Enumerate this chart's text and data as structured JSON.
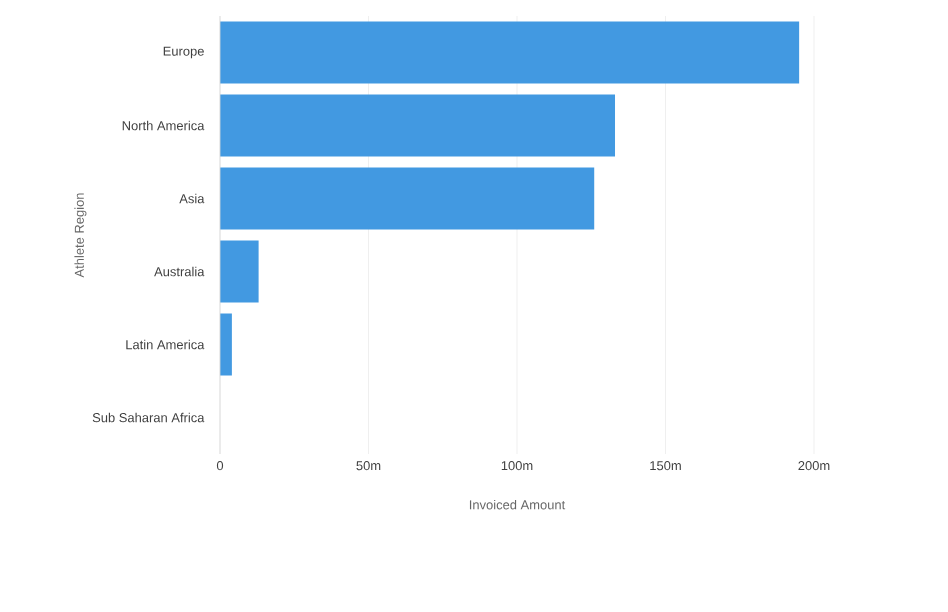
{
  "chart_data": {
    "type": "bar",
    "orientation": "horizontal",
    "xlabel": "Invoiced Amount",
    "ylabel": "Athlete Region",
    "categories": [
      "Europe",
      "North America",
      "Asia",
      "Australia",
      "Latin America",
      "Sub Saharan Africa"
    ],
    "values": [
      195,
      133,
      126,
      13,
      4,
      0
    ],
    "color": "#4299e1",
    "xlim": [
      0,
      200
    ],
    "xticks": [
      0,
      {
        "value": 50,
        "label": "50m"
      },
      {
        "value": 100,
        "label": "100m"
      },
      {
        "value": 150,
        "label": "150m"
      },
      {
        "value": 200,
        "label": "200m"
      }
    ],
    "grid": "x"
  }
}
